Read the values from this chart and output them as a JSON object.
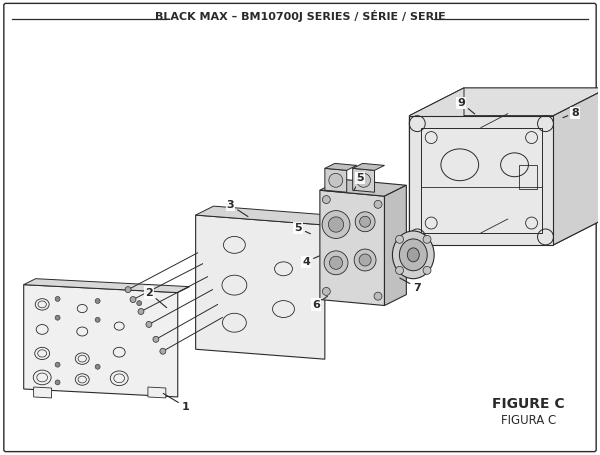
{
  "title": "BLACK MAX – BM10700J SERIES / SÉRIE / SERIE",
  "figure_label": "FIGURE C",
  "figura_label": "FIGURA C",
  "bg_color": "#ffffff",
  "lc": "#2a2a2a",
  "title_fontsize": 8.0,
  "label_fontsize": 8.0,
  "fig_label_fontsize": 10.0
}
